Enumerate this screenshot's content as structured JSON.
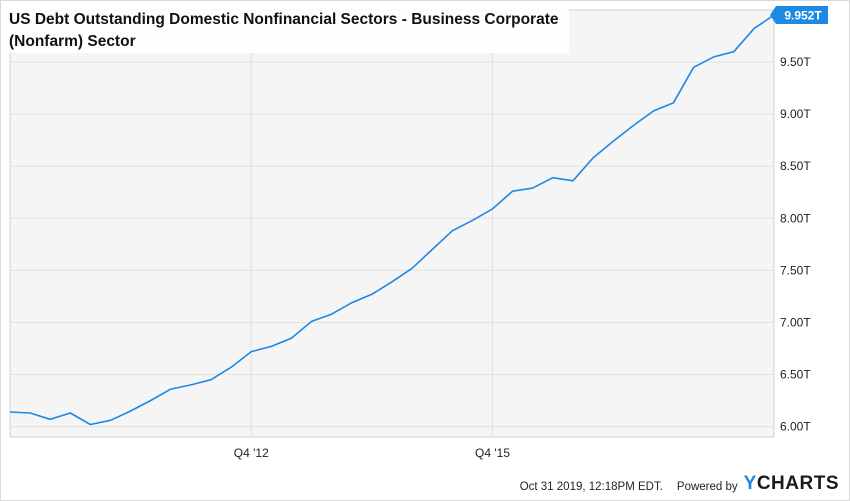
{
  "chart_data": {
    "type": "line",
    "title": "US Debt Outstanding Domestic Nonfinancial Sectors - Business Corporate (Nonfarm) Sector",
    "xlabel": "",
    "ylabel": "",
    "x_tick_labels": [
      "Q4 '12",
      "Q4 '15"
    ],
    "y_tick_labels": [
      "6.00T",
      "6.50T",
      "7.00T",
      "7.50T",
      "8.00T",
      "8.50T",
      "9.00T",
      "9.50T"
    ],
    "y_tick_values": [
      6.0,
      6.5,
      7.0,
      7.5,
      8.0,
      8.5,
      9.0,
      9.5
    ],
    "ylim": [
      5.9,
      10.0
    ],
    "grid": true,
    "series": [
      {
        "color": "#1e88e5",
        "last_value_label": "9.952T",
        "x": [
          "Q4 '09",
          "Q1 '10",
          "Q2 '10",
          "Q3 '10",
          "Q4 '10",
          "Q1 '11",
          "Q2 '11",
          "Q3 '11",
          "Q4 '11",
          "Q1 '12",
          "Q2 '12",
          "Q3 '12",
          "Q4 '12",
          "Q1 '13",
          "Q2 '13",
          "Q3 '13",
          "Q4 '13",
          "Q1 '14",
          "Q2 '14",
          "Q3 '14",
          "Q4 '14",
          "Q1 '15",
          "Q2 '15",
          "Q3 '15",
          "Q4 '15",
          "Q1 '16",
          "Q2 '16",
          "Q3 '16",
          "Q4 '16",
          "Q1 '17",
          "Q2 '17",
          "Q3 '17",
          "Q4 '17",
          "Q1 '18",
          "Q2 '18",
          "Q3 '18",
          "Q4 '18",
          "Q1 '19",
          "Q2 '19"
        ],
        "values": [
          6.14,
          6.13,
          6.07,
          6.13,
          6.02,
          6.06,
          6.15,
          6.25,
          6.36,
          6.4,
          6.45,
          6.57,
          6.72,
          6.77,
          6.85,
          7.01,
          7.08,
          7.19,
          7.27,
          7.39,
          7.52,
          7.7,
          7.88,
          7.98,
          8.09,
          8.26,
          8.29,
          8.39,
          8.36,
          8.58,
          8.74,
          8.89,
          9.03,
          9.11,
          9.45,
          9.55,
          9.6,
          9.82,
          9.952
        ]
      }
    ],
    "timestamp": "Oct 31 2019, 12:18PM EDT.",
    "powered_by": "Powered by",
    "brand": "YCHARTS"
  }
}
